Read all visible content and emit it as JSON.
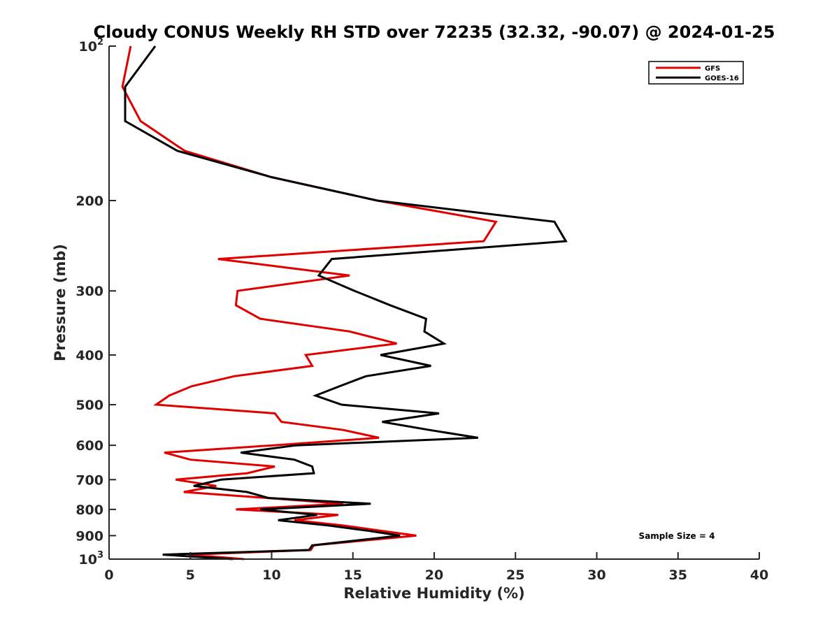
{
  "chart_data": {
    "type": "line",
    "title": "Cloudy CONUS Weekly RH STD over 72235 (32.32, -90.07) @ 2024-01-25",
    "xlabel": "Relative Humidity (%)",
    "ylabel": "Pressure (mb)",
    "xlim": [
      0,
      40
    ],
    "ylim": [
      100,
      1000
    ],
    "yscale": "log",
    "yreversed": true,
    "grid": false,
    "x_ticks": [
      0,
      5,
      10,
      15,
      20,
      25,
      30,
      35,
      40
    ],
    "x_tick_labels": [
      "0",
      "5",
      "10",
      "15",
      "20",
      "25",
      "30",
      "35",
      "40"
    ],
    "y_ticks": [
      100,
      200,
      300,
      400,
      500,
      600,
      700,
      800,
      900,
      1000
    ],
    "y_tick_labels": [
      {
        "base": "10",
        "exp": "2"
      },
      {
        "base": "200",
        "exp": ""
      },
      {
        "base": "300",
        "exp": ""
      },
      {
        "base": "400",
        "exp": ""
      },
      {
        "base": "500",
        "exp": ""
      },
      {
        "base": "600",
        "exp": ""
      },
      {
        "base": "700",
        "exp": ""
      },
      {
        "base": "800",
        "exp": ""
      },
      {
        "base": "900",
        "exp": ""
      },
      {
        "base": "10",
        "exp": "3"
      }
    ],
    "legend": {
      "position": "top-right"
    },
    "annotation": "Sample Size = 4",
    "pressure": [
      100,
      120,
      140,
      160,
      180,
      200,
      220,
      240,
      260,
      280,
      300,
      320,
      340,
      360,
      380,
      400,
      420,
      440,
      460,
      480,
      500,
      520,
      540,
      560,
      580,
      600,
      620,
      640,
      660,
      680,
      700,
      720,
      740,
      760,
      780,
      800,
      820,
      840,
      860,
      880,
      900,
      920,
      940,
      960,
      980,
      1000
    ],
    "series": [
      {
        "name": "GFS",
        "color": "#e00000",
        "values": [
          1.33,
          0.82,
          1.94,
          4.65,
          9.98,
          16.5,
          23.8,
          23.05,
          6.7,
          14.8,
          7.9,
          7.8,
          9.3,
          14.8,
          17.7,
          12.1,
          12.5,
          7.7,
          5.1,
          3.7,
          2.9,
          10.2,
          10.6,
          14.4,
          16.6,
          10.1,
          3.4,
          5.0,
          10.2,
          8.5,
          4.1,
          6.6,
          4.6,
          9.7,
          14.4,
          7.8,
          14.1,
          11.4,
          14.4,
          16.7,
          18.9,
          15.7,
          12.6,
          12.4,
          4.9,
          8.3
        ]
      },
      {
        "name": "GOES-16",
        "color": "#000000",
        "values": [
          2.84,
          0.99,
          0.99,
          4.2,
          9.98,
          16.5,
          27.4,
          28.1,
          13.7,
          12.9,
          15.1,
          17.3,
          19.5,
          19.4,
          20.6,
          16.7,
          19.8,
          15.8,
          14.2,
          12.7,
          14.3,
          20.3,
          16.8,
          19.7,
          22.7,
          11.5,
          8.1,
          11.4,
          12.5,
          12.6,
          6.9,
          5.2,
          8.5,
          9.8,
          16.1,
          9.3,
          12.8,
          10.4,
          13.5,
          15.9,
          17.9,
          15.2,
          12.5,
          12.3,
          3.3,
          7.6
        ]
      }
    ]
  }
}
